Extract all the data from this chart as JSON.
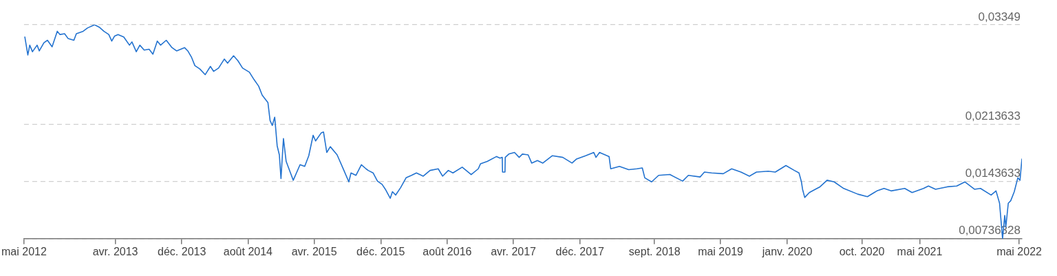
{
  "chart_data": {
    "type": "line",
    "color": "#2272cf",
    "x": [
      "2012-05-04",
      "2012-05-15",
      "2012-05-22",
      "2012-06-01",
      "2012-06-18",
      "2012-06-26",
      "2012-07-13",
      "2012-07-26",
      "2012-08-12",
      "2012-08-31",
      "2012-09-10",
      "2012-09-27",
      "2012-10-10",
      "2012-10-31",
      "2012-11-09",
      "2012-12-04",
      "2012-12-20",
      "2013-01-15",
      "2013-02-01",
      "2013-02-18",
      "2013-03-08",
      "2013-03-19",
      "2013-03-29",
      "2013-04-11",
      "2013-05-02",
      "2013-05-23",
      "2013-06-01",
      "2013-06-17",
      "2013-06-30",
      "2013-07-16",
      "2013-08-03",
      "2013-08-17",
      "2013-09-02",
      "2013-09-14",
      "2013-10-05",
      "2013-10-26",
      "2013-11-12",
      "2013-12-11",
      "2013-12-23",
      "2014-01-06",
      "2014-01-18",
      "2014-02-05",
      "2014-02-25",
      "2014-03-16",
      "2014-03-28",
      "2014-04-15",
      "2014-05-06",
      "2014-05-18",
      "2014-06-09",
      "2014-06-25",
      "2014-07-12",
      "2014-08-06",
      "2014-08-23",
      "2014-09-09",
      "2014-09-22",
      "2014-10-13",
      "2014-10-21",
      "2014-10-29",
      "2014-11-07",
      "2014-11-16",
      "2014-11-24",
      "2014-11-30",
      "2014-12-09",
      "2014-12-19",
      "2015-01-14",
      "2015-02-08",
      "2015-02-25",
      "2015-03-12",
      "2015-03-28",
      "2015-04-06",
      "2015-04-27",
      "2015-05-05",
      "2015-05-17",
      "2015-05-30",
      "2015-06-24",
      "2015-07-19",
      "2015-08-06",
      "2015-08-14",
      "2015-09-01",
      "2015-09-21",
      "2015-10-08",
      "2015-10-16",
      "2015-11-03",
      "2015-11-19",
      "2015-12-06",
      "2015-12-18",
      "2016-01-05",
      "2016-01-13",
      "2016-01-25",
      "2016-02-12",
      "2016-03-03",
      "2016-03-23",
      "2016-04-10",
      "2016-05-05",
      "2016-05-30",
      "2016-06-29",
      "2016-07-15",
      "2016-08-05",
      "2016-08-22",
      "2016-09-25",
      "2016-10-28",
      "2016-11-23",
      "2016-12-01",
      "2016-12-26",
      "2017-01-29",
      "2017-02-11",
      "2017-02-19",
      "2017-02-20",
      "2017-03-01",
      "2017-03-02",
      "2017-03-15",
      "2017-04-05",
      "2017-04-22",
      "2017-05-04",
      "2017-05-25",
      "2017-06-07",
      "2017-06-28",
      "2017-07-18",
      "2017-08-22",
      "2017-09-29",
      "2017-11-02",
      "2017-11-19",
      "2017-12-22",
      "2018-01-21",
      "2018-01-29",
      "2018-02-11",
      "2018-03-18",
      "2018-03-24",
      "2018-04-25",
      "2018-05-29",
      "2018-06-28",
      "2018-07-18",
      "2018-07-27",
      "2018-08-21",
      "2018-09-16",
      "2018-10-27",
      "2018-12-13",
      "2019-01-03",
      "2019-02-15",
      "2019-03-03",
      "2019-03-29",
      "2019-05-11",
      "2019-06-11",
      "2019-07-15",
      "2019-08-15",
      "2019-09-10",
      "2019-10-23",
      "2019-11-18",
      "2019-12-27",
      "2020-01-27",
      "2020-02-13",
      "2020-02-22",
      "2020-02-26",
      "2020-03-05",
      "2020-03-22",
      "2020-04-13",
      "2020-04-30",
      "2020-05-26",
      "2020-06-21",
      "2020-07-26",
      "2020-09-16",
      "2020-10-21",
      "2020-11-25",
      "2020-12-21",
      "2021-01-16",
      "2021-03-07",
      "2021-04-03",
      "2021-05-15",
      "2021-06-02",
      "2021-06-28",
      "2021-08-10",
      "2021-09-14",
      "2021-10-14",
      "2021-11-18",
      "2021-12-10",
      "2022-01-18",
      "2022-02-05",
      "2022-02-18",
      "2022-03-01",
      "2022-03-09",
      "2022-03-13",
      "2022-03-22",
      "2022-03-31",
      "2022-04-13",
      "2022-04-26",
      "2022-05-04",
      "2022-05-11"
    ],
    "values": [
      0.032,
      0.0298,
      0.031,
      0.0302,
      0.031,
      0.0303,
      0.0313,
      0.0316,
      0.0308,
      0.0327,
      0.0323,
      0.0324,
      0.0318,
      0.0316,
      0.0324,
      0.0327,
      0.0331,
      0.03349,
      0.0332,
      0.0327,
      0.0323,
      0.0315,
      0.0321,
      0.0323,
      0.032,
      0.031,
      0.0314,
      0.0302,
      0.031,
      0.0304,
      0.0305,
      0.0299,
      0.0315,
      0.031,
      0.0316,
      0.0307,
      0.0303,
      0.0307,
      0.0303,
      0.0295,
      0.0285,
      0.0281,
      0.0274,
      0.0284,
      0.0278,
      0.0282,
      0.0293,
      0.0288,
      0.0297,
      0.0291,
      0.0282,
      0.0277,
      0.0268,
      0.026,
      0.0249,
      0.024,
      0.0218,
      0.0212,
      0.0222,
      0.0187,
      0.0176,
      0.0147,
      0.0196,
      0.0168,
      0.0145,
      0.0164,
      0.0162,
      0.0175,
      0.02,
      0.0193,
      0.0203,
      0.0204,
      0.0179,
      0.0186,
      0.0176,
      0.0157,
      0.0143,
      0.0154,
      0.0151,
      0.0164,
      0.0159,
      0.0157,
      0.0154,
      0.0144,
      0.014,
      0.0134,
      0.0123,
      0.0131,
      0.0127,
      0.0136,
      0.0148,
      0.0151,
      0.0154,
      0.015,
      0.0157,
      0.0159,
      0.015,
      0.0157,
      0.0154,
      0.0161,
      0.0152,
      0.0159,
      0.0165,
      0.0168,
      0.0174,
      0.0172,
      0.0173,
      0.0155,
      0.0155,
      0.0173,
      0.0177,
      0.0179,
      0.0173,
      0.0177,
      0.0176,
      0.0166,
      0.0169,
      0.0166,
      0.0175,
      0.0173,
      0.0166,
      0.0171,
      0.0175,
      0.0179,
      0.0173,
      0.0179,
      0.0174,
      0.0159,
      0.0162,
      0.0158,
      0.0159,
      0.016,
      0.0148,
      0.0143,
      0.0151,
      0.0152,
      0.0144,
      0.0151,
      0.0149,
      0.0155,
      0.0154,
      0.0153,
      0.0159,
      0.0155,
      0.015,
      0.0155,
      0.0156,
      0.0155,
      0.0163,
      0.0157,
      0.0154,
      0.0143,
      0.0134,
      0.0124,
      0.013,
      0.0134,
      0.0137,
      0.0145,
      0.0143,
      0.0135,
      0.0128,
      0.0125,
      0.0132,
      0.0135,
      0.0132,
      0.0135,
      0.013,
      0.0135,
      0.0138,
      0.0134,
      0.0137,
      0.0138,
      0.0143,
      0.0134,
      0.0135,
      0.0127,
      0.0132,
      0.0117,
      0.00736328,
      0.0102,
      0.0088,
      0.0117,
      0.012,
      0.0131,
      0.0148,
      0.0145,
      0.0171
    ],
    "xlim": [
      "2012-05-01",
      "2022-05-11"
    ],
    "xticks": [
      {
        "value": "2012-05-01",
        "label": "mai 2012"
      },
      {
        "value": "2013-04-01",
        "label": "avr. 2013"
      },
      {
        "value": "2013-12-01",
        "label": "déc. 2013"
      },
      {
        "value": "2014-08-01",
        "label": "août 2014"
      },
      {
        "value": "2015-04-01",
        "label": "avr. 2015"
      },
      {
        "value": "2015-12-01",
        "label": "déc. 2015"
      },
      {
        "value": "2016-08-01",
        "label": "août 2016"
      },
      {
        "value": "2017-04-01",
        "label": "avr. 2017"
      },
      {
        "value": "2017-12-01",
        "label": "déc. 2017"
      },
      {
        "value": "2018-09-01",
        "label": "sept. 2018"
      },
      {
        "value": "2019-05-01",
        "label": "mai 2019"
      },
      {
        "value": "2020-01-01",
        "label": "janv. 2020"
      },
      {
        "value": "2020-10-01",
        "label": "oct. 2020"
      },
      {
        "value": "2021-05-01",
        "label": "mai 2021"
      },
      {
        "value": "2022-05-01",
        "label": "mai 2022"
      }
    ],
    "ylim": [
      0.00736328,
      0.03349
    ],
    "yticks": [
      {
        "value": 0.00736328,
        "label": "0,00736328"
      },
      {
        "value": 0.0143633,
        "label": "0,0143633"
      },
      {
        "value": 0.0213633,
        "label": "0,0213633"
      },
      {
        "value": 0.03349,
        "label": "0,03349"
      }
    ],
    "grid": "y"
  }
}
